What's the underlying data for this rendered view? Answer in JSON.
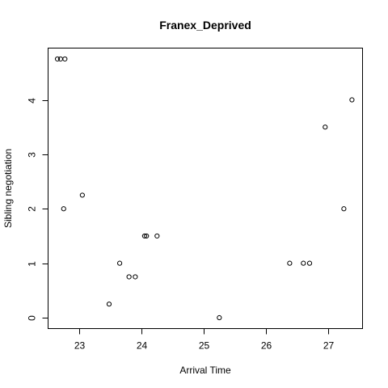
{
  "chart_data": {
    "type": "scatter",
    "title": "Franex_Deprived",
    "xlabel": "Arrival Time",
    "ylabel": "Sibling negotiation",
    "xlim": [
      22.5,
      27.55
    ],
    "ylim": [
      -0.2,
      4.95
    ],
    "xticks": [
      23,
      24,
      25,
      26,
      27
    ],
    "yticks": [
      0,
      1,
      2,
      3,
      4
    ],
    "grid": false,
    "points": [
      {
        "x": 22.65,
        "y": 4.75
      },
      {
        "x": 22.7,
        "y": 4.75
      },
      {
        "x": 22.77,
        "y": 4.75
      },
      {
        "x": 22.75,
        "y": 2.0
      },
      {
        "x": 23.05,
        "y": 2.25
      },
      {
        "x": 23.48,
        "y": 0.25
      },
      {
        "x": 23.65,
        "y": 1.0
      },
      {
        "x": 23.8,
        "y": 0.75
      },
      {
        "x": 23.9,
        "y": 0.75
      },
      {
        "x": 24.05,
        "y": 1.5
      },
      {
        "x": 24.08,
        "y": 1.5
      },
      {
        "x": 24.25,
        "y": 1.5
      },
      {
        "x": 25.25,
        "y": 0.0
      },
      {
        "x": 26.38,
        "y": 1.0
      },
      {
        "x": 26.6,
        "y": 1.0
      },
      {
        "x": 26.7,
        "y": 1.0
      },
      {
        "x": 26.95,
        "y": 3.5
      },
      {
        "x": 27.25,
        "y": 2.0
      },
      {
        "x": 27.38,
        "y": 4.0
      }
    ]
  }
}
